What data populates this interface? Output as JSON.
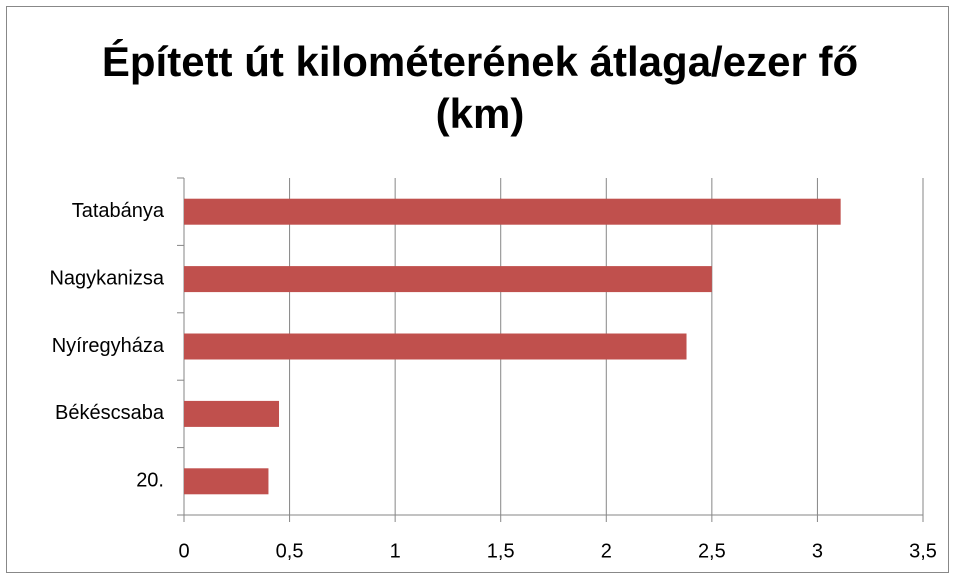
{
  "chart_data": {
    "type": "barh",
    "title": "Épített út kilométerének átlaga/ezer fő (km)",
    "categories": [
      "Tatabánya",
      "Nagykanizsa",
      "Nyíregyháza",
      "Békéscsaba",
      "20."
    ],
    "values": [
      3.11,
      2.5,
      2.38,
      0.45,
      0.4
    ],
    "color": "#c0504d",
    "xlim": [
      0,
      3.5
    ],
    "xticks": [
      0,
      {
        "value": 0.5,
        "label": "0,5"
      },
      1,
      {
        "value": 1.5,
        "label": "1,5"
      },
      2,
      {
        "value": 2.5,
        "label": "2,5"
      },
      3,
      {
        "value": 3.5,
        "label": "3,5"
      }
    ],
    "grid": true
  }
}
